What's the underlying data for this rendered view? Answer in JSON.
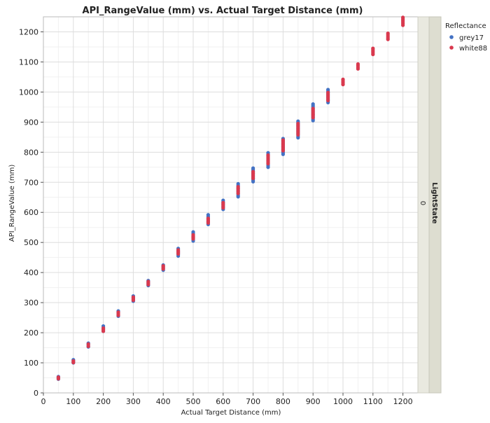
{
  "chart_data": {
    "type": "scatter",
    "title": "API_RangeValue (mm) vs. Actual Target Distance (mm)",
    "xlabel": "Actual Target Distance (mm)",
    "ylabel": "API_RangeValue (mm)",
    "xlim": [
      0,
      1250
    ],
    "ylim": [
      0,
      1250
    ],
    "xticks": [
      0,
      100,
      200,
      300,
      400,
      500,
      600,
      700,
      800,
      900,
      1000,
      1100,
      1200
    ],
    "yticks": [
      0,
      100,
      200,
      300,
      400,
      500,
      600,
      700,
      800,
      900,
      1000,
      1100,
      1200
    ],
    "grid": true,
    "legend": {
      "title": "Reflectance",
      "placement": "top-right",
      "entries": [
        {
          "name": "grey17",
          "color": "#4472c4"
        },
        {
          "name": "white88",
          "color": "#d9394e"
        }
      ]
    },
    "facet_strip": {
      "label": "LightState",
      "value": "0"
    },
    "series": [
      {
        "name": "grey17",
        "color": "#4472c4",
        "points": [
          {
            "x": 50,
            "y_min": 46,
            "y_max": 54
          },
          {
            "x": 100,
            "y_min": 100,
            "y_max": 110
          },
          {
            "x": 150,
            "y_min": 153,
            "y_max": 165
          },
          {
            "x": 200,
            "y_min": 205,
            "y_max": 222
          },
          {
            "x": 250,
            "y_min": 255,
            "y_max": 272
          },
          {
            "x": 300,
            "y_min": 305,
            "y_max": 322
          },
          {
            "x": 350,
            "y_min": 357,
            "y_max": 373
          },
          {
            "x": 400,
            "y_min": 408,
            "y_max": 425
          },
          {
            "x": 450,
            "y_min": 455,
            "y_max": 480
          },
          {
            "x": 500,
            "y_min": 505,
            "y_max": 535
          },
          {
            "x": 550,
            "y_min": 560,
            "y_max": 592
          },
          {
            "x": 600,
            "y_min": 610,
            "y_max": 640
          },
          {
            "x": 650,
            "y_min": 652,
            "y_max": 695
          },
          {
            "x": 700,
            "y_min": 702,
            "y_max": 747
          },
          {
            "x": 750,
            "y_min": 750,
            "y_max": 798
          },
          {
            "x": 800,
            "y_min": 793,
            "y_max": 845
          },
          {
            "x": 850,
            "y_min": 848,
            "y_max": 903
          },
          {
            "x": 900,
            "y_min": 905,
            "y_max": 960
          },
          {
            "x": 950,
            "y_min": 965,
            "y_max": 1008
          }
        ]
      },
      {
        "name": "white88",
        "color": "#d9394e",
        "points": [
          {
            "x": 50,
            "y_min": 47,
            "y_max": 52
          },
          {
            "x": 100,
            "y_min": 101,
            "y_max": 106
          },
          {
            "x": 150,
            "y_min": 155,
            "y_max": 162
          },
          {
            "x": 200,
            "y_min": 205,
            "y_max": 215
          },
          {
            "x": 250,
            "y_min": 258,
            "y_max": 268
          },
          {
            "x": 300,
            "y_min": 308,
            "y_max": 318
          },
          {
            "x": 350,
            "y_min": 360,
            "y_max": 370
          },
          {
            "x": 400,
            "y_min": 412,
            "y_max": 422
          },
          {
            "x": 450,
            "y_min": 462,
            "y_max": 475
          },
          {
            "x": 500,
            "y_min": 512,
            "y_max": 525
          },
          {
            "x": 550,
            "y_min": 565,
            "y_max": 580
          },
          {
            "x": 600,
            "y_min": 615,
            "y_max": 632
          },
          {
            "x": 650,
            "y_min": 663,
            "y_max": 685
          },
          {
            "x": 700,
            "y_min": 713,
            "y_max": 735
          },
          {
            "x": 750,
            "y_min": 762,
            "y_max": 790
          },
          {
            "x": 800,
            "y_min": 805,
            "y_max": 840
          },
          {
            "x": 850,
            "y_min": 858,
            "y_max": 895
          },
          {
            "x": 900,
            "y_min": 915,
            "y_max": 945
          },
          {
            "x": 950,
            "y_min": 972,
            "y_max": 998
          },
          {
            "x": 1000,
            "y_min": 1025,
            "y_max": 1042
          },
          {
            "x": 1050,
            "y_min": 1077,
            "y_max": 1093
          },
          {
            "x": 1100,
            "y_min": 1125,
            "y_max": 1145
          },
          {
            "x": 1150,
            "y_min": 1175,
            "y_max": 1195
          },
          {
            "x": 1200,
            "y_min": 1222,
            "y_max": 1248
          }
        ]
      }
    ]
  }
}
